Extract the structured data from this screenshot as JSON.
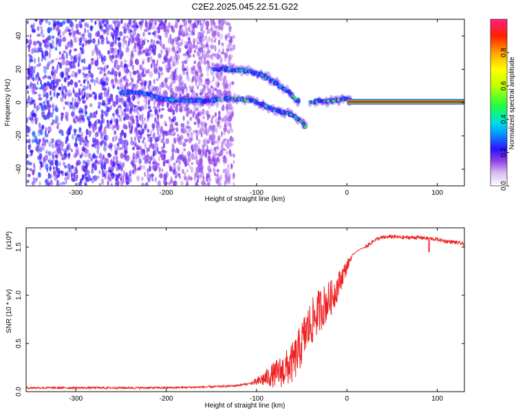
{
  "title": "C2E2.2025.045.22.51.G22",
  "chart_data": [
    {
      "type": "heatmap",
      "xlabel": "Height of straight line (km)",
      "ylabel": "Frequency (Hz)",
      "xlim": [
        -355,
        130
      ],
      "ylim": [
        -50,
        50
      ],
      "xticks": [
        -300,
        -200,
        -100,
        0,
        100
      ],
      "yticks": [
        -40,
        -20,
        0,
        20,
        40
      ],
      "xtick_labels": [
        "-300",
        "-200",
        "-100",
        "0",
        "100"
      ],
      "ytick_labels": [
        "-40",
        "-20",
        "0",
        "20",
        "40"
      ],
      "colorbar": {
        "label": "Normalized spectral amplitude",
        "range": [
          0,
          1
        ],
        "ticks": [
          0.0,
          0.2,
          0.4,
          0.6,
          0.8
        ],
        "tick_labels": [
          "0.0",
          "0.2",
          "0.4",
          "0.6",
          "0.8"
        ]
      },
      "features": [
        {
          "kind": "noise-field",
          "x_range": [
            -355,
            -125
          ],
          "y_range": [
            -50,
            50
          ],
          "amplitude": 0.1
        },
        {
          "kind": "track",
          "points": [
            [
              -250,
              6
            ],
            [
              -230,
              6
            ],
            [
              -215,
              4
            ],
            [
              -200,
              2
            ],
            [
              -175,
              1
            ],
            [
              -150,
              1
            ],
            [
              -140,
              2
            ]
          ],
          "amplitude": 0.3
        },
        {
          "kind": "track",
          "points": [
            [
              -148,
              20
            ],
            [
              -130,
              20
            ],
            [
              -110,
              19
            ],
            [
              -95,
              17
            ],
            [
              -80,
              12
            ],
            [
              -68,
              8
            ],
            [
              -60,
              4
            ],
            [
              -52,
              0
            ]
          ],
          "amplitude": 0.35
        },
        {
          "kind": "track",
          "points": [
            [
              -135,
              3
            ],
            [
              -120,
              2
            ],
            [
              -105,
              1
            ],
            [
              -90,
              -2
            ],
            [
              -78,
              -5
            ],
            [
              -68,
              -6
            ],
            [
              -58,
              -8
            ],
            [
              -50,
              -12
            ],
            [
              -45,
              -15
            ]
          ],
          "amplitude": 0.4
        },
        {
          "kind": "track",
          "points": [
            [
              -40,
              0
            ],
            [
              -30,
              1
            ],
            [
              -15,
              1
            ],
            [
              -2,
              2
            ],
            [
              5,
              1
            ]
          ],
          "amplitude": 0.45
        },
        {
          "kind": "line",
          "y": 0.5,
          "x_range": [
            0,
            130
          ],
          "amplitude": 0.85
        }
      ]
    },
    {
      "type": "line",
      "xlabel": "Height of straight line (km)",
      "ylabel": "SNR (10 * v/v)",
      "y_multiplier": "(x10",
      "y_multiplier_exponent": "4",
      "y_multiplier_close": ")",
      "xlim": [
        -355,
        130
      ],
      "ylim": [
        0,
        1.7
      ],
      "xticks": [
        -300,
        -200,
        -100,
        0,
        100
      ],
      "yticks": [
        0.0,
        0.5,
        1.0,
        1.5
      ],
      "xtick_labels": [
        "-300",
        "-200",
        "-100",
        "0",
        "100"
      ],
      "ytick_labels": [
        "0.0",
        "0.5",
        "1.0",
        "1.5"
      ],
      "series": [
        {
          "color": "#ee2222",
          "x": [
            -355,
            -300,
            -250,
            -200,
            -150,
            -125,
            -110,
            -100,
            -90,
            -80,
            -70,
            -60,
            -55,
            -50,
            -45,
            -40,
            -35,
            -30,
            -25,
            -20,
            -15,
            -10,
            -5,
            0,
            5,
            10,
            15,
            20,
            25,
            30,
            35,
            40,
            50,
            60,
            70,
            80,
            90,
            100,
            110,
            120,
            130
          ],
          "y": [
            0.04,
            0.04,
            0.04,
            0.04,
            0.05,
            0.06,
            0.08,
            0.1,
            0.14,
            0.18,
            0.22,
            0.3,
            0.38,
            0.5,
            0.62,
            0.7,
            0.78,
            0.85,
            0.9,
            0.95,
            1.0,
            1.1,
            1.2,
            1.3,
            1.4,
            1.45,
            1.48,
            1.5,
            1.53,
            1.57,
            1.59,
            1.6,
            1.61,
            1.6,
            1.6,
            1.6,
            1.59,
            1.58,
            1.56,
            1.55,
            1.53
          ],
          "noise_band": {
            "x_range": [
              -110,
              20
            ],
            "max_spread": 0.35
          }
        }
      ]
    }
  ]
}
